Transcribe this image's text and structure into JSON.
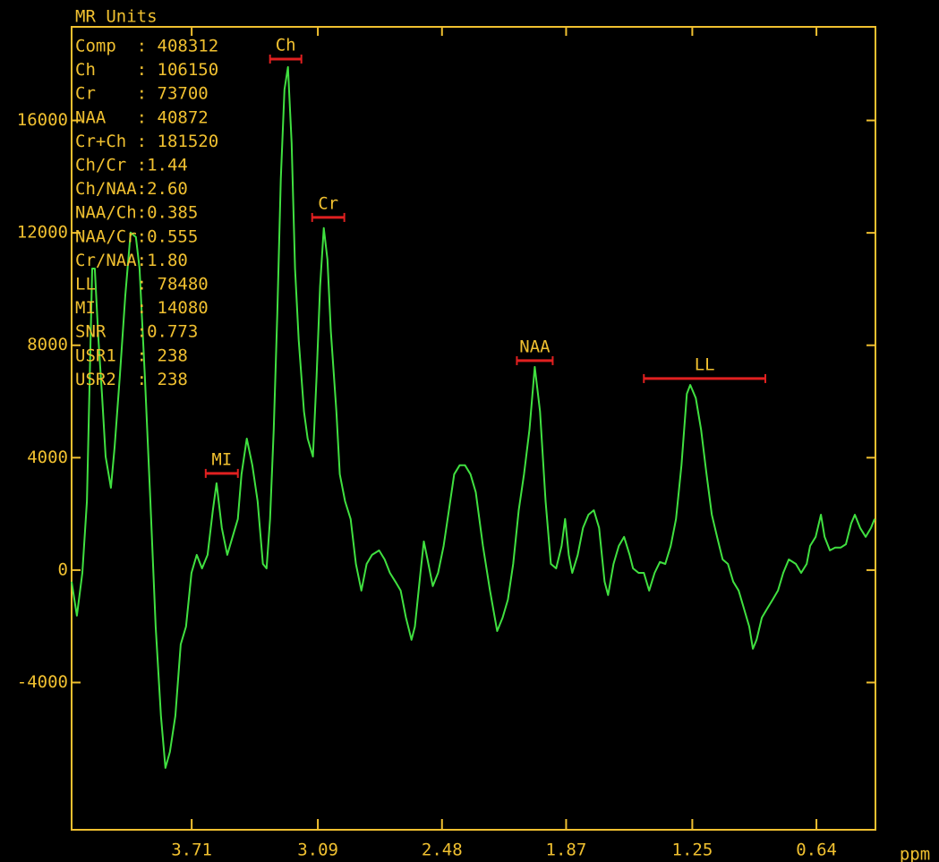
{
  "chart_data": {
    "type": "line",
    "ylabel": "MR Units",
    "xlabel": "ppm",
    "xlim": [
      4.3,
      0.35
    ],
    "ylim": [
      -9240,
      19330
    ],
    "xticks": [
      3.71,
      3.09,
      2.48,
      1.87,
      1.25,
      0.64
    ],
    "yticks": [
      16000,
      12000,
      8000,
      4000,
      0,
      -4000
    ],
    "readout": [
      "Comp  : 408312",
      "Ch    : 106150",
      "Cr    : 73700",
      "NAA   : 40872",
      "Cr+Ch : 181520",
      "Ch/Cr :1.44",
      "Ch/NAA:2.60",
      "NAA/Ch:0.385",
      "NAA/Cr:0.555",
      "Cr/NAA:1.80",
      "LL    : 78480",
      "MI    : 14080",
      "SNR   :0.773",
      "USR1  : 238",
      "USR2  : 238"
    ],
    "annotations": [
      {
        "text": "MI",
        "x": [
          3.641,
          3.483
        ],
        "y": 3440
      },
      {
        "text": "Ch",
        "x": [
          3.325,
          3.171
        ],
        "y": 18185
      },
      {
        "text": "Cr",
        "x": [
          3.118,
          2.96
        ],
        "y": 12548
      },
      {
        "text": "NAA",
        "x": [
          2.112,
          1.936
        ],
        "y": 7452
      },
      {
        "text": "LL",
        "x": [
          1.488,
          0.891
        ],
        "y": 6815
      }
    ],
    "axis_color": "#f0c030",
    "annotation_color": "#e02020",
    "series": [
      {
        "color": "#40e040",
        "x": [
          4.3,
          4.274,
          4.247,
          4.225,
          4.199,
          4.186,
          4.168,
          4.151,
          4.133,
          4.107,
          4.089,
          4.063,
          4.036,
          4.01,
          3.984,
          3.966,
          3.94,
          3.913,
          3.887,
          3.861,
          3.839,
          3.817,
          3.79,
          3.764,
          3.738,
          3.711,
          3.685,
          3.659,
          3.632,
          3.606,
          3.588,
          3.562,
          3.535,
          3.509,
          3.483,
          3.465,
          3.439,
          3.412,
          3.386,
          3.36,
          3.342,
          3.325,
          3.307,
          3.289,
          3.272,
          3.254,
          3.237,
          3.219,
          3.202,
          3.184,
          3.158,
          3.14,
          3.114,
          3.096,
          3.079,
          3.061,
          3.043,
          3.026,
          2.999,
          2.982,
          2.956,
          2.929,
          2.903,
          2.876,
          2.85,
          2.824,
          2.789,
          2.762,
          2.736,
          2.709,
          2.683,
          2.657,
          2.63,
          2.613,
          2.586,
          2.569,
          2.551,
          2.525,
          2.499,
          2.472,
          2.446,
          2.42,
          2.393,
          2.367,
          2.34,
          2.314,
          2.279,
          2.244,
          2.209,
          2.182,
          2.156,
          2.13,
          2.103,
          2.077,
          2.05,
          2.024,
          1.998,
          1.971,
          1.945,
          1.919,
          1.892,
          1.875,
          1.857,
          1.84,
          1.813,
          1.787,
          1.76,
          1.734,
          1.708,
          1.681,
          1.664,
          1.637,
          1.611,
          1.585,
          1.558,
          1.541,
          1.514,
          1.488,
          1.462,
          1.435,
          1.409,
          1.383,
          1.356,
          1.33,
          1.303,
          1.277,
          1.26,
          1.233,
          1.207,
          1.18,
          1.154,
          1.128,
          1.101,
          1.075,
          1.049,
          1.022,
          0.996,
          0.97,
          0.952,
          0.934,
          0.908,
          0.882,
          0.855,
          0.829,
          0.803,
          0.776,
          0.741,
          0.715,
          0.688,
          0.671,
          0.644,
          0.618,
          0.6,
          0.574,
          0.548,
          0.521,
          0.495,
          0.469,
          0.451,
          0.425,
          0.398,
          0.372,
          0.354
        ],
        "values": [
          -410,
          -1620,
          -100,
          2450,
          10730,
          10730,
          8190,
          6270,
          4040,
          2930,
          4360,
          6910,
          9780,
          12010,
          11850,
          10730,
          6910,
          2450,
          -2010,
          -5190,
          -7040,
          -6470,
          -5190,
          -2640,
          -2010,
          -100,
          540,
          60,
          540,
          2130,
          3090,
          1500,
          540,
          1180,
          1820,
          3410,
          4680,
          3730,
          2450,
          220,
          60,
          1820,
          5000,
          9140,
          13920,
          17100,
          17900,
          15190,
          10730,
          8190,
          5640,
          4680,
          4040,
          6910,
          10100,
          12170,
          11050,
          8500,
          5640,
          3410,
          2450,
          1820,
          220,
          -730,
          220,
          540,
          700,
          380,
          -100,
          -410,
          -730,
          -1690,
          -2480,
          -2010,
          -100,
          1020,
          380,
          -570,
          -100,
          860,
          2130,
          3410,
          3730,
          3730,
          3410,
          2770,
          860,
          -730,
          -2170,
          -1690,
          -1050,
          220,
          2130,
          3410,
          5000,
          7230,
          5640,
          2450,
          220,
          60,
          860,
          1820,
          540,
          -100,
          540,
          1500,
          1970,
          2130,
          1500,
          -410,
          -890,
          220,
          860,
          1180,
          540,
          60,
          -100,
          -100,
          -730,
          -100,
          290,
          220,
          860,
          1820,
          3730,
          6270,
          6590,
          6120,
          5000,
          3410,
          1970,
          1180,
          380,
          220,
          -410,
          -730,
          -1370,
          -2010,
          -2800,
          -2480,
          -1690,
          -1370,
          -1050,
          -730,
          -100,
          380,
          220,
          -100,
          220,
          860,
          1180,
          1970,
          1180,
          700,
          800,
          800,
          920,
          1660,
          1970,
          1500,
          1180,
          1500,
          1820
        ]
      }
    ]
  }
}
